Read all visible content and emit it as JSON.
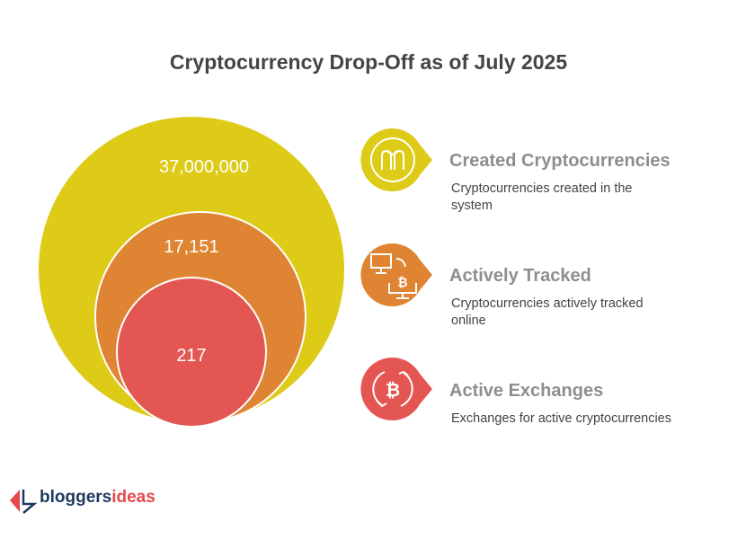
{
  "title": "Cryptocurrency Drop-Off as of July 2025",
  "colors": {
    "created": "#DDCB17",
    "tracked": "#DF8432",
    "exchanges": "#E45652",
    "logo_blue": "#1E3A5F",
    "logo_red": "#E5484D"
  },
  "circles": [
    {
      "label": "37,000,000"
    },
    {
      "label": "17,151"
    },
    {
      "label": "217"
    }
  ],
  "items": [
    {
      "icon": "maker-coin-icon",
      "title": "Created Cryptocurrencies",
      "desc": "Cryptocurrencies created in the system"
    },
    {
      "icon": "computer-bitcoin-transfer-icon",
      "title": "Actively Tracked",
      "desc": "Cryptocurrencies actively tracked online"
    },
    {
      "icon": "bitcoin-exchange-icon",
      "title": "Active Exchanges",
      "desc": "Exchanges for active cryptocurrencies"
    }
  ],
  "logo": {
    "part1": "bloggers",
    "part2": "ideas"
  }
}
